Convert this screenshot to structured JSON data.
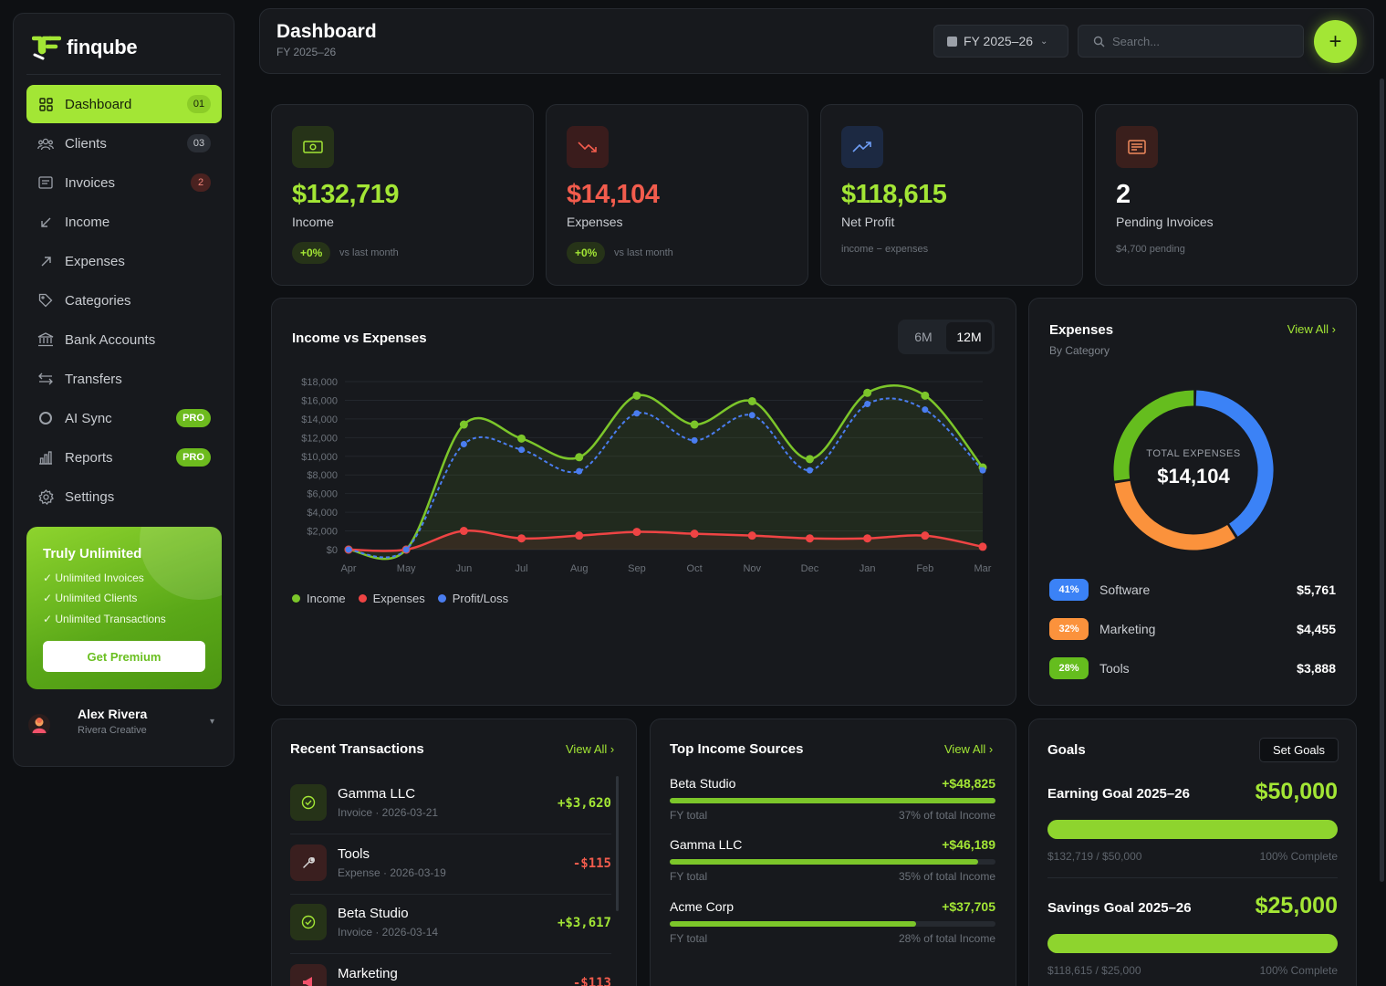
{
  "brand": {
    "name": "finqube"
  },
  "sidebar": {
    "items": [
      {
        "label": "Dashboard",
        "icon": "grid-icon",
        "badge": "01"
      },
      {
        "label": "Clients",
        "icon": "users-icon",
        "badge": "03"
      },
      {
        "label": "Invoices",
        "icon": "invoice-icon",
        "badge": "2"
      },
      {
        "label": "Income",
        "icon": "arrow-down-left-icon"
      },
      {
        "label": "Expenses",
        "icon": "arrow-up-right-icon"
      },
      {
        "label": "Categories",
        "icon": "tag-icon"
      },
      {
        "label": "Bank Accounts",
        "icon": "bank-icon"
      },
      {
        "label": "Transfers",
        "icon": "transfer-icon"
      },
      {
        "label": "AI Sync",
        "icon": "circle-icon",
        "badge": "PRO"
      },
      {
        "label": "Reports",
        "icon": "bar-chart-icon",
        "badge": "PRO"
      },
      {
        "label": "Settings",
        "icon": "gear-icon"
      }
    ],
    "promo": {
      "title": "Truly Unlimited",
      "features": [
        "✓ Unlimited Invoices",
        "✓ Unlimited Clients",
        "✓ Unlimited Transactions"
      ],
      "button": "Get Premium"
    },
    "user": {
      "name": "Alex Rivera",
      "org": "Rivera Creative"
    }
  },
  "header": {
    "title": "Dashboard",
    "subtitle": "FY 2025–26",
    "fy_select": "FY 2025–26",
    "search_placeholder": "Search...",
    "add_label": "+"
  },
  "stats": [
    {
      "value": "$132,719",
      "label": "Income",
      "chip": "+0%",
      "note": "vs last month",
      "color": "#a3e635",
      "icon": "cash-icon"
    },
    {
      "value": "$14,104",
      "label": "Expenses",
      "chip": "+0%",
      "note": "vs last month",
      "color": "#f25c4d",
      "icon": "trend-down-icon"
    },
    {
      "value": "$118,615",
      "label": "Net Profit",
      "note": "income − expenses",
      "color": "#a3e635",
      "icon": "trend-up-icon"
    },
    {
      "value": "2",
      "label": "Pending Invoices",
      "note": "$4,700 pending",
      "color": "#ffffff",
      "icon": "receipt-icon"
    }
  ],
  "chart_card": {
    "title": "Income vs Expenses",
    "ranges": [
      "6M",
      "12M"
    ],
    "active_range": "12M"
  },
  "chart_data": {
    "type": "line",
    "title": "Income vs Expenses",
    "categories": [
      "Apr",
      "May",
      "Jun",
      "Jul",
      "Aug",
      "Sep",
      "Oct",
      "Nov",
      "Dec",
      "Jan",
      "Feb",
      "Mar"
    ],
    "y_ticks": [
      "$0",
      "$2,000",
      "$4,000",
      "$6,000",
      "$8,000",
      "$10,000",
      "$12,000",
      "$14,000",
      "$16,000",
      "$18,000"
    ],
    "ylim": [
      0,
      18000
    ],
    "grid": true,
    "legend": "bottom-left",
    "series": [
      {
        "name": "Income",
        "color": "#7cc62a",
        "style": "solid",
        "values": [
          0,
          0,
          13400,
          11900,
          9900,
          16500,
          13400,
          15900,
          9700,
          16800,
          16500,
          8800
        ]
      },
      {
        "name": "Expenses",
        "color": "#ef4444",
        "style": "solid",
        "values": [
          0,
          0,
          2000,
          1200,
          1500,
          1900,
          1700,
          1500,
          1200,
          1200,
          1500,
          300
        ]
      },
      {
        "name": "Profit/Loss",
        "color": "#4a7df0",
        "style": "dashed",
        "values": [
          0,
          0,
          11300,
          10700,
          8400,
          14600,
          11700,
          14400,
          8500,
          15600,
          15000,
          8500
        ]
      }
    ]
  },
  "expenses_card": {
    "title": "Expenses",
    "subtitle": "By Category",
    "view_all": "View All ›",
    "center_label": "TOTAL EXPENSES",
    "center_value": "$14,104",
    "categories": [
      {
        "pct": "41%",
        "name": "Software",
        "amount": "$5,761",
        "color": "#3b82f6",
        "value": 41
      },
      {
        "pct": "32%",
        "name": "Marketing",
        "amount": "$4,455",
        "color": "#fb923c",
        "value": 32
      },
      {
        "pct": "28%",
        "name": "Tools",
        "amount": "$3,888",
        "color": "#65bd1e",
        "value": 28
      }
    ]
  },
  "transactions": {
    "title": "Recent Transactions",
    "view_all": "View All ›",
    "items": [
      {
        "name": "Gamma LLC",
        "meta": "Invoice · 2026-03-21",
        "amount": "+$3,620",
        "type": "income",
        "icon": "check-circle-icon"
      },
      {
        "name": "Tools",
        "meta": "Expense · 2026-03-19",
        "amount": "-$115",
        "type": "expense",
        "icon": "wrench-icon"
      },
      {
        "name": "Beta Studio",
        "meta": "Invoice · 2026-03-14",
        "amount": "+$3,617",
        "type": "income",
        "icon": "check-circle-icon"
      },
      {
        "name": "Marketing",
        "meta": "",
        "amount": "-$113",
        "type": "expense",
        "icon": "megaphone-icon"
      }
    ]
  },
  "income_sources": {
    "title": "Top Income Sources",
    "view_all": "View All ›",
    "items": [
      {
        "name": "Beta Studio",
        "amount": "+$48,825",
        "left": "FY total",
        "right": "37% of total Income",
        "share": 0.37
      },
      {
        "name": "Gamma LLC",
        "amount": "+$46,189",
        "left": "FY total",
        "right": "35% of total Income",
        "share": 0.35
      },
      {
        "name": "Acme Corp",
        "amount": "+$37,705",
        "left": "FY total",
        "right": "28% of total Income",
        "share": 0.28
      }
    ]
  },
  "goals": {
    "title": "Goals",
    "set_button": "Set Goals",
    "items": [
      {
        "name": "Earning Goal 2025–26",
        "target": "$50,000",
        "progress": "$132,719 / $50,000",
        "complete": "100% Complete",
        "fraction": 1.0
      },
      {
        "name": "Savings Goal 2025–26",
        "target": "$25,000",
        "progress": "$118,615 / $25,000",
        "complete": "100% Complete",
        "fraction": 1.0
      }
    ]
  }
}
